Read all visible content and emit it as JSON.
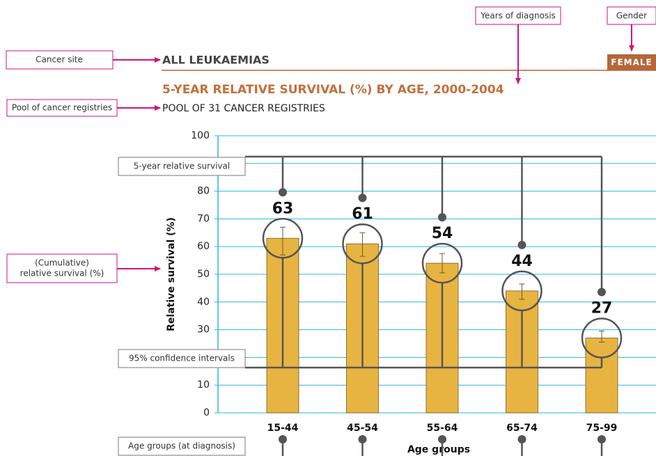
{
  "chart_data": {
    "type": "bar",
    "header": "ALL LEUKAEMIAS",
    "gender": "FEMALE",
    "title": "5-YEAR RELATIVE SURVIVAL (%) BY AGE, 2000-2004",
    "subtitle": "POOL OF 31 CANCER REGISTRIES",
    "y_label": "Relative survival (%)",
    "x_label": "Age groups",
    "categories": [
      "15-44",
      "45-54",
      "55-64",
      "65-74",
      "75-99"
    ],
    "values": [
      63,
      61,
      54,
      44,
      27
    ],
    "ci": [
      [
        57,
        67
      ],
      [
        56.5,
        65
      ],
      [
        50.5,
        57.5
      ],
      [
        41,
        46.5
      ],
      [
        25.5,
        29.5
      ]
    ],
    "color": "#e8b441",
    "ylim": [
      0,
      100
    ],
    "yticks": [
      0,
      10,
      20,
      30,
      40,
      50,
      60,
      70,
      80,
      90,
      100
    ],
    "grid": true,
    "annotations": {
      "cancer_site": "Cancer site",
      "years": "Years of diagnosis",
      "gender": "Gender",
      "pool": "Pool of cancer registries",
      "survival": "5-year relative survival",
      "cumulative": [
        "(Cumulative)",
        "relative survival (%)"
      ],
      "ci": "95% confidence intervals",
      "age_groups": "Age groups (at diagnosis)"
    }
  }
}
